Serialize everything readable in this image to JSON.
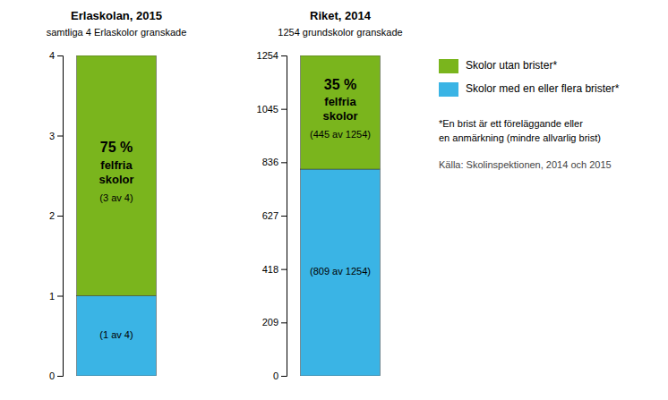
{
  "chart_data": [
    {
      "type": "bar",
      "stacked": true,
      "title": "Erlaskolan, 2015",
      "subtitle": "samtliga 4 Erlaskolor granskade",
      "categories": [
        null
      ],
      "series": [
        {
          "name": "Skolor med en eller flera brister*",
          "color": "#3ab4e5",
          "values": [
            1
          ],
          "value_labels": [
            "(1 av 4)"
          ]
        },
        {
          "name": "Skolor utan brister*",
          "color": "#7ab51d",
          "values": [
            3
          ],
          "value_labels": [
            "(3 av 4)"
          ]
        }
      ],
      "annotations": [
        "75 %",
        "felfria",
        "skolor"
      ],
      "ylim": [
        0,
        4
      ],
      "yticks": [
        0,
        1,
        2,
        3,
        4
      ],
      "data_labels": true,
      "tick_labels": "y",
      "legend": "right",
      "footnote": [
        "*En brist är ett föreläggande eller",
        "en anmärkning (mindre allvarlig brist)"
      ],
      "source": "Källa: Skolinspektionen, 2014 och 2015"
    },
    {
      "type": "bar",
      "stacked": true,
      "title": "Riket, 2014",
      "subtitle": "1254 grundskolor granskade",
      "categories": [
        null
      ],
      "series": [
        {
          "color": "#3ab4e5",
          "values": [
            809
          ],
          "value_labels": [
            "(809 av 1254)"
          ]
        },
        {
          "color": "#7ab51d",
          "values": [
            445
          ],
          "value_labels": [
            "(445 av 1254)"
          ]
        }
      ],
      "annotations": [
        "35 %",
        "felfria",
        "skolor"
      ],
      "ylim": [
        0,
        1254
      ],
      "yticks": [
        0,
        209,
        418,
        627,
        836,
        1045,
        1254
      ],
      "data_labels": true,
      "tick_labels": "y"
    }
  ]
}
